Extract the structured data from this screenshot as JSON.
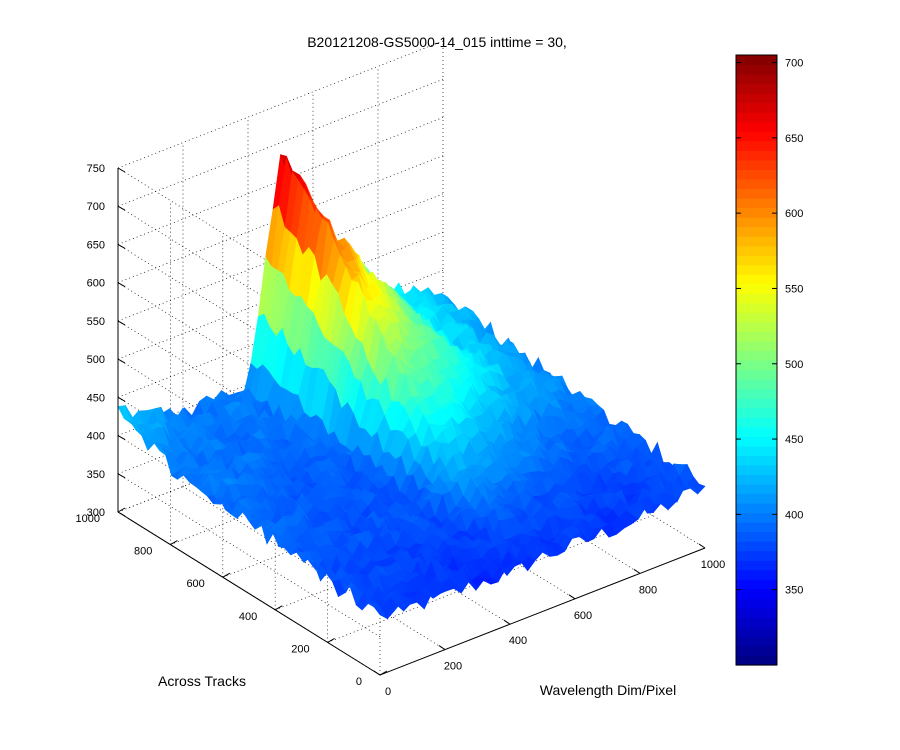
{
  "chart_data": {
    "type": "surface",
    "title": "B20121208-GS5000-14_015 inttime = 30,",
    "xlabel": "Wavelength Dim/Pixel",
    "ylabel": "Across Tracks",
    "zlabel": "",
    "xlim": [
      0,
      1000
    ],
    "ylim": [
      0,
      1000
    ],
    "zlim": [
      300,
      750
    ],
    "xticks": [
      "0",
      "200",
      "400",
      "600",
      "800",
      "1000"
    ],
    "yticks": [
      "0",
      "200",
      "400",
      "600",
      "800",
      "1000"
    ],
    "zticks": [
      "300",
      "350",
      "400",
      "450",
      "500",
      "550",
      "600",
      "650",
      "700",
      "750"
    ],
    "grid": true,
    "colormap": "jet",
    "clim": [
      300,
      705
    ],
    "colorbar_ticks": [
      "350",
      "400",
      "450",
      "500",
      "550",
      "600",
      "650",
      "700"
    ],
    "baseline_value": 390,
    "peak": {
      "x": 480,
      "y": 980,
      "value": 690
    },
    "surface_profile": {
      "rows_y": [
        0,
        200,
        400,
        600,
        800,
        1000
      ],
      "cols_x": [
        0,
        200,
        400,
        500,
        600,
        800,
        1000
      ],
      "values": [
        [
          375,
          370,
          368,
          372,
          370,
          372,
          380
        ],
        [
          382,
          378,
          376,
          390,
          385,
          378,
          390
        ],
        [
          390,
          385,
          382,
          440,
          430,
          400,
          395
        ],
        [
          395,
          390,
          388,
          520,
          500,
          440,
          400
        ],
        [
          400,
          395,
          395,
          620,
          560,
          450,
          410
        ],
        [
          430,
          400,
          400,
          690,
          580,
          460,
          420
        ]
      ]
    }
  }
}
